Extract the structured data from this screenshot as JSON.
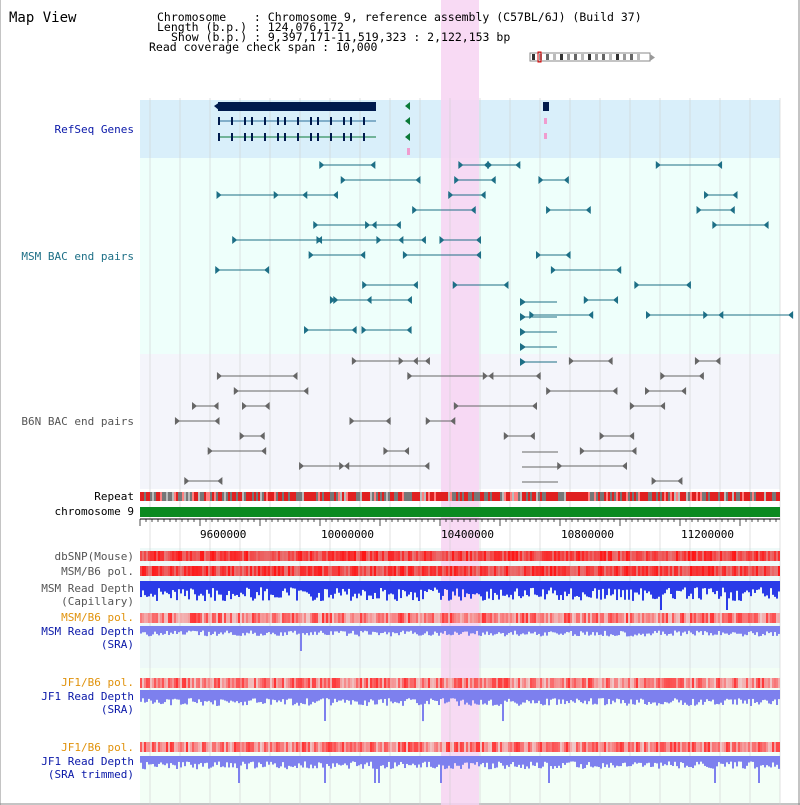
{
  "page": {
    "title": "Map View"
  },
  "header": {
    "chromosome_label": "Chromosome    : Chromosome 9, reference assembly (C57BL/6J) (Build 37)",
    "length_label": "Length (b.p.) : 124,076,172",
    "show_label": "Show (b.p.) : 9,397,171-11,519,323 : 2,122,153 bp",
    "coverage_label": "Read coverage check span : 10,000"
  },
  "tracks": {
    "refseq": "RefSeq Genes",
    "msm_bac": "MSM BAC end pairs",
    "b6n_bac": "B6N BAC end pairs",
    "repeat": "Repeat",
    "chromosome": "chromosome 9",
    "dbsnp": "dbSNP(Mouse)",
    "msm_b6_pol": "MSM/B6 pol.",
    "msm_depth_cap_1": "MSM Read Depth",
    "msm_depth_cap_2": "(Capillary)",
    "msm_b6_pol_2": "MSM/B6 pol.",
    "msm_depth_sra_1": "MSM Read Depth",
    "msm_depth_sra_2": "(SRA)",
    "jf1_b6_pol": "JF1/B6 pol.",
    "jf1_depth_sra_1": "JF1 Read Depth",
    "jf1_depth_sra_2": "(SRA)",
    "jf1_b6_pol_2": "JF1/B6 pol.",
    "jf1_depth_trim_1": "JF1 Read Depth",
    "jf1_depth_trim_2": "(SRA trimmed)"
  },
  "axis": {
    "ticks": [
      "9600000",
      "10000000",
      "10400000",
      "10800000",
      "11200000"
    ]
  },
  "colors": {
    "refseq_bg": "#d9effa",
    "bac_bg": "#eefffb",
    "b6n_bg": "#f4f5fb",
    "highlight": "#f7d3f2",
    "chromosome_bar": "#0b8a20",
    "refseq_gene": "#001a4d",
    "msm_line": "#1d6f86",
    "b6n_line": "#666666",
    "depth_blue": "#2a3be8",
    "depth_light_blue": "#7d80ee",
    "pol_red": "#e84040"
  }
}
